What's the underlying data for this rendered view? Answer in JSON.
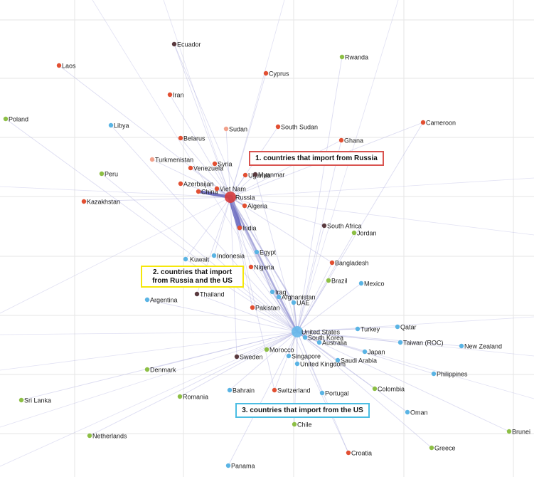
{
  "colors": {
    "russia_importer": "#e24f32",
    "us_importer": "#5ab4e4",
    "both_importer": "#5a3a3f",
    "other": "#8dbf45",
    "light_red": "#f2a28c",
    "hub_russia": "#d63b3b",
    "hub_us": "#66b8ea",
    "edge": "#9a9ad6",
    "edge_heavy": "#5b5bb8",
    "grid": "#e6e6e6"
  },
  "annotations": {
    "russia": "1. countries that import from Russia",
    "both_line1": "2. countries that import",
    "both_line2": "from Russia and the US",
    "us": "3. countries that import from the US"
  },
  "nodes": [
    {
      "id": "ecuador",
      "label": "Ecuador",
      "group": "both_importer"
    },
    {
      "id": "laos",
      "label": "Laos",
      "group": "russia_importer"
    },
    {
      "id": "rwanda",
      "label": "Rwanda",
      "group": "other"
    },
    {
      "id": "cyprus",
      "label": "Cyprus",
      "group": "russia_importer"
    },
    {
      "id": "iran",
      "label": "Iran",
      "group": "russia_importer"
    },
    {
      "id": "poland",
      "label": "Poland",
      "group": "other"
    },
    {
      "id": "libya",
      "label": "Libya",
      "group": "us_importer"
    },
    {
      "id": "sudan",
      "label": "Sudan",
      "group": "light_red"
    },
    {
      "id": "south-sudan",
      "label": "South Sudan",
      "group": "russia_importer"
    },
    {
      "id": "cameroon",
      "label": "Cameroon",
      "group": "russia_importer"
    },
    {
      "id": "belarus",
      "label": "Belarus",
      "group": "russia_importer"
    },
    {
      "id": "ghana",
      "label": "Ghana",
      "group": "russia_importer"
    },
    {
      "id": "turkmenistan",
      "label": "Turkmenistan",
      "group": "light_red"
    },
    {
      "id": "syria",
      "label": "Syria",
      "group": "russia_importer"
    },
    {
      "id": "venezuela",
      "label": "Venezuela",
      "group": "russia_importer"
    },
    {
      "id": "peru",
      "label": "Peru",
      "group": "other"
    },
    {
      "id": "uganda",
      "label": "Uganda",
      "group": "russia_importer"
    },
    {
      "id": "myanmar",
      "label": "Myanmar",
      "group": "both_importer"
    },
    {
      "id": "azerbaijan",
      "label": "Azerbaijan",
      "group": "russia_importer"
    },
    {
      "id": "china",
      "label": "China",
      "group": "russia_importer"
    },
    {
      "id": "viet-nam",
      "label": "Viet Nam",
      "group": "russia_importer"
    },
    {
      "id": "kazakhstan",
      "label": "Kazakhstan",
      "group": "russia_importer"
    },
    {
      "id": "russia",
      "label": "Russia",
      "group": "hub_russia",
      "hub": true
    },
    {
      "id": "algeria",
      "label": "Algeria",
      "group": "russia_importer"
    },
    {
      "id": "south-africa",
      "label": "South Africa",
      "group": "both_importer"
    },
    {
      "id": "india",
      "label": "India",
      "group": "russia_importer"
    },
    {
      "id": "jordan",
      "label": "Jordan",
      "group": "other"
    },
    {
      "id": "kuwait",
      "label": "Kuwait",
      "group": "us_importer"
    },
    {
      "id": "indonesia",
      "label": "Indonesia",
      "group": "us_importer"
    },
    {
      "id": "egypt",
      "label": "Egypt",
      "group": "us_importer"
    },
    {
      "id": "bangladesh",
      "label": "Bangladesh",
      "group": "russia_importer"
    },
    {
      "id": "nigeria",
      "label": "Nigeria",
      "group": "russia_importer"
    },
    {
      "id": "brazil",
      "label": "Brazil",
      "group": "other"
    },
    {
      "id": "mexico",
      "label": "Mexico",
      "group": "us_importer"
    },
    {
      "id": "thailand",
      "label": "Thailand",
      "group": "both_importer"
    },
    {
      "id": "iraq",
      "label": "Iraq",
      "group": "us_importer"
    },
    {
      "id": "afghanistan",
      "label": "Afghanistan",
      "group": "us_importer"
    },
    {
      "id": "argentina",
      "label": "Argentina",
      "group": "us_importer"
    },
    {
      "id": "uae",
      "label": "UAE",
      "group": "us_importer"
    },
    {
      "id": "pakistan",
      "label": "Pakistan",
      "group": "russia_importer"
    },
    {
      "id": "united-states",
      "label": "United States",
      "group": "hub_us",
      "hub": true
    },
    {
      "id": "qatar",
      "label": "Qatar",
      "group": "us_importer"
    },
    {
      "id": "turkey",
      "label": "Turkey",
      "group": "us_importer"
    },
    {
      "id": "south-korea",
      "label": "South Korea",
      "group": "us_importer"
    },
    {
      "id": "australia",
      "label": "Australia",
      "group": "us_importer"
    },
    {
      "id": "taiwan",
      "label": "Taiwan (ROC)",
      "group": "us_importer"
    },
    {
      "id": "new-zealand",
      "label": "New Zealand",
      "group": "us_importer"
    },
    {
      "id": "morocco",
      "label": "Morocco",
      "group": "other"
    },
    {
      "id": "japan",
      "label": "Japan",
      "group": "us_importer"
    },
    {
      "id": "sweden",
      "label": "Sweden",
      "group": "both_importer"
    },
    {
      "id": "singapore",
      "label": "Singapore",
      "group": "us_importer"
    },
    {
      "id": "saudi-arabia",
      "label": "Saudi Arabia",
      "group": "us_importer"
    },
    {
      "id": "united-kingdom",
      "label": "United Kingdom",
      "group": "us_importer"
    },
    {
      "id": "denmark",
      "label": "Denmark",
      "group": "other"
    },
    {
      "id": "philippines",
      "label": "Philippines",
      "group": "us_importer"
    },
    {
      "id": "colombia",
      "label": "Colombia",
      "group": "other"
    },
    {
      "id": "bahrain",
      "label": "Bahrain",
      "group": "us_importer"
    },
    {
      "id": "switzerland",
      "label": "Switzerland",
      "group": "russia_importer"
    },
    {
      "id": "portugal",
      "label": "Portugal",
      "group": "us_importer"
    },
    {
      "id": "sri-lanka",
      "label": "Sri Lanka",
      "group": "other"
    },
    {
      "id": "romania",
      "label": "Romania",
      "group": "other"
    },
    {
      "id": "oman",
      "label": "Oman",
      "group": "us_importer"
    },
    {
      "id": "chile",
      "label": "Chile",
      "group": "other"
    },
    {
      "id": "netherlands",
      "label": "Netherlands",
      "group": "other"
    },
    {
      "id": "brunei",
      "label": "Brunei",
      "group": "other"
    },
    {
      "id": "greece",
      "label": "Greece",
      "group": "other"
    },
    {
      "id": "croatia",
      "label": "Croatia",
      "group": "russia_importer"
    },
    {
      "id": "panama",
      "label": "Panama",
      "group": "us_importer"
    }
  ],
  "edges": [
    {
      "from": "russia",
      "to": "india",
      "weight": 5
    },
    {
      "from": "russia",
      "to": "china",
      "weight": 3
    },
    {
      "from": "russia",
      "to": "viet-nam",
      "weight": 2
    },
    {
      "from": "russia",
      "to": "algeria",
      "weight": 2
    },
    {
      "from": "russia",
      "to": "azerbaijan",
      "weight": 1
    },
    {
      "from": "russia",
      "to": "venezuela",
      "weight": 1
    },
    {
      "from": "russia",
      "to": "syria",
      "weight": 1
    },
    {
      "from": "russia",
      "to": "uganda",
      "weight": 1
    },
    {
      "from": "russia",
      "to": "myanmar",
      "weight": 1
    },
    {
      "from": "russia",
      "to": "belarus",
      "weight": 1
    },
    {
      "from": "russia",
      "to": "turkmenistan",
      "weight": 1
    },
    {
      "from": "russia",
      "to": "kazakhstan",
      "weight": 1
    },
    {
      "from": "russia",
      "to": "iran",
      "weight": 1
    },
    {
      "from": "russia",
      "to": "laos",
      "weight": 1
    },
    {
      "from": "russia",
      "to": "ecuador",
      "weight": 1
    },
    {
      "from": "russia",
      "to": "cyprus",
      "weight": 1
    },
    {
      "from": "russia",
      "to": "sudan",
      "weight": 1
    },
    {
      "from": "russia",
      "to": "south-sudan",
      "weight": 1
    },
    {
      "from": "russia",
      "to": "ghana",
      "weight": 1
    },
    {
      "from": "russia",
      "to": "cameroon",
      "weight": 1
    },
    {
      "from": "russia",
      "to": "south-africa",
      "weight": 1
    },
    {
      "from": "russia",
      "to": "bangladesh",
      "weight": 1
    },
    {
      "from": "russia",
      "to": "nigeria",
      "weight": 1
    },
    {
      "from": "russia",
      "to": "egypt",
      "weight": 2
    },
    {
      "from": "russia",
      "to": "indonesia",
      "weight": 1
    },
    {
      "from": "russia",
      "to": "kuwait",
      "weight": 1
    },
    {
      "from": "russia",
      "to": "thailand",
      "weight": 1
    },
    {
      "from": "russia",
      "to": "pakistan",
      "weight": 1
    },
    {
      "from": "russia",
      "to": "iraq",
      "weight": 2
    },
    {
      "from": "russia",
      "to": "afghanistan",
      "weight": 2
    },
    {
      "from": "russia",
      "to": "uae",
      "weight": 2
    },
    {
      "from": "russia",
      "to": "sweden",
      "weight": 1
    },
    {
      "from": "russia",
      "to": "switzerland",
      "weight": 1
    },
    {
      "from": "russia",
      "to": "croatia",
      "weight": 1
    },
    {
      "from": "russia",
      "to": "united-states",
      "weight": 2
    },
    {
      "from": "united-states",
      "to": "egypt",
      "weight": 2
    },
    {
      "from": "united-states",
      "to": "iraq",
      "weight": 2
    },
    {
      "from": "united-states",
      "to": "afghanistan",
      "weight": 2
    },
    {
      "from": "united-states",
      "to": "uae",
      "weight": 2
    },
    {
      "from": "united-states",
      "to": "india",
      "weight": 1
    },
    {
      "from": "united-states",
      "to": "kuwait",
      "weight": 1
    },
    {
      "from": "united-states",
      "to": "indonesia",
      "weight": 1
    },
    {
      "from": "united-states",
      "to": "thailand",
      "weight": 1
    },
    {
      "from": "united-states",
      "to": "argentina",
      "weight": 1
    },
    {
      "from": "united-states",
      "to": "pakistan",
      "weight": 1
    },
    {
      "from": "united-states",
      "to": "nigeria",
      "weight": 1
    },
    {
      "from": "united-states",
      "to": "brazil",
      "weight": 1
    },
    {
      "from": "united-states",
      "to": "mexico",
      "weight": 1
    },
    {
      "from": "united-states",
      "to": "bangladesh",
      "weight": 1
    },
    {
      "from": "united-states",
      "to": "south-africa",
      "weight": 1
    },
    {
      "from": "united-states",
      "to": "jordan",
      "weight": 1
    },
    {
      "from": "united-states",
      "to": "ghana",
      "weight": 1
    },
    {
      "from": "united-states",
      "to": "rwanda",
      "weight": 1
    },
    {
      "from": "united-states",
      "to": "myanmar",
      "weight": 1
    },
    {
      "from": "united-states",
      "to": "turkey",
      "weight": 1
    },
    {
      "from": "united-states",
      "to": "qatar",
      "weight": 1
    },
    {
      "from": "united-states",
      "to": "south-korea",
      "weight": 2
    },
    {
      "from": "united-states",
      "to": "australia",
      "weight": 2
    },
    {
      "from": "united-states",
      "to": "taiwan",
      "weight": 1
    },
    {
      "from": "united-states",
      "to": "new-zealand",
      "weight": 1
    },
    {
      "from": "united-states",
      "to": "japan",
      "weight": 1
    },
    {
      "from": "united-states",
      "to": "saudi-arabia",
      "weight": 1
    },
    {
      "from": "united-states",
      "to": "philippines",
      "weight": 1
    },
    {
      "from": "united-states",
      "to": "colombia",
      "weight": 1
    },
    {
      "from": "united-states",
      "to": "oman",
      "weight": 1
    },
    {
      "from": "united-states",
      "to": "brunei",
      "weight": 1
    },
    {
      "from": "united-states",
      "to": "greece",
      "weight": 1
    },
    {
      "from": "united-states",
      "to": "croatia",
      "weight": 1
    },
    {
      "from": "united-states",
      "to": "portugal",
      "weight": 1
    },
    {
      "from": "united-states",
      "to": "chile",
      "weight": 1
    },
    {
      "from": "united-states",
      "to": "panama",
      "weight": 1
    },
    {
      "from": "united-states",
      "to": "switzerland",
      "weight": 1
    },
    {
      "from": "united-states",
      "to": "bahrain",
      "weight": 1
    },
    {
      "from": "united-states",
      "to": "romania",
      "weight": 1
    },
    {
      "from": "united-states",
      "to": "netherlands",
      "weight": 1
    },
    {
      "from": "united-states",
      "to": "sri-lanka",
      "weight": 1
    },
    {
      "from": "united-states",
      "to": "denmark",
      "weight": 1
    },
    {
      "from": "united-states",
      "to": "sweden",
      "weight": 1
    },
    {
      "from": "united-states",
      "to": "morocco",
      "weight": 1
    },
    {
      "from": "united-states",
      "to": "singapore",
      "weight": 1
    },
    {
      "from": "united-states",
      "to": "united-kingdom",
      "weight": 1
    },
    {
      "from": "united-states",
      "to": "poland",
      "weight": 1
    },
    {
      "from": "united-states",
      "to": "libya",
      "weight": 1
    },
    {
      "from": "united-states",
      "to": "peru",
      "weight": 1
    },
    {
      "from": "united-states",
      "to": "ecuador",
      "weight": 1
    },
    {
      "from": "united-states",
      "to": "cameroon",
      "weight": 1
    }
  ]
}
